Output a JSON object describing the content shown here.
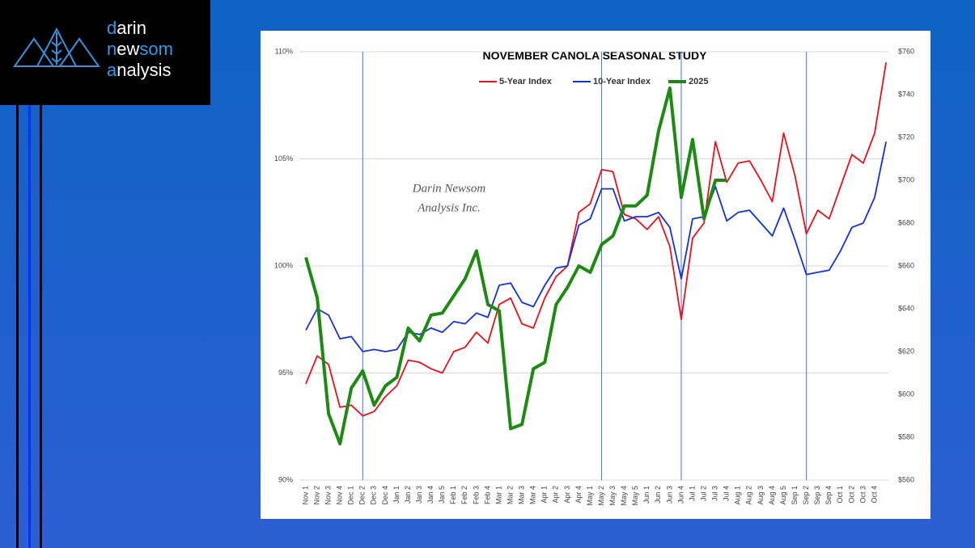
{
  "logo": {
    "lines": [
      [
        "d",
        "arin"
      ],
      [
        "n",
        "ew",
        "som"
      ],
      [
        "a",
        "nalysis"
      ]
    ]
  },
  "watermark": [
    "Darin Newsom",
    "Analysis Inc."
  ],
  "chart_data": {
    "type": "line",
    "title": "NOVEMBER CANOLA SEASONAL STUDY",
    "categories": [
      "Nov 1",
      "Nov 2",
      "Nov 3",
      "Nov 4",
      "Dec 1",
      "Dec 2",
      "Dec 3",
      "Dec 4",
      "Jan 1",
      "Jan 2",
      "Jan 3",
      "Jan 4",
      "Jan 5",
      "Feb 1",
      "Feb 2",
      "Feb 3",
      "Feb 4",
      "Mar 1",
      "Mar 2",
      "Mar 3",
      "Mar 4",
      "Apr 1",
      "Apr 2",
      "Apr 3",
      "Apr 4",
      "May 1",
      "May 2",
      "May 3",
      "May 4",
      "May 5",
      "Jun 1",
      "Jun 2",
      "Jun 3",
      "Jun 4",
      "Jul 1",
      "Jul 2",
      "Jul 3",
      "Jul 4",
      "Aug 1",
      "Aug 2",
      "Aug 3",
      "Aug 4",
      "Aug 5",
      "Sep 1",
      "Sep 2",
      "Sep 3",
      "Sep 4",
      "Oct 1",
      "Oct 2",
      "Oct 3",
      "Oct 4",
      null
    ],
    "series": [
      {
        "name": "5-Year Index",
        "color": "#e8101c",
        "values": [
          94.5,
          95.8,
          95.4,
          93.4,
          93.5,
          93.0,
          93.2,
          93.9,
          94.4,
          95.6,
          95.5,
          95.2,
          95.0,
          96.0,
          96.2,
          96.9,
          96.4,
          98.2,
          98.5,
          97.3,
          97.1,
          98.5,
          99.5,
          100.0,
          102.5,
          102.9,
          104.5,
          104.4,
          102.4,
          102.2,
          101.7,
          102.3,
          100.9,
          97.5,
          101.3,
          102.0,
          105.8,
          103.9,
          104.8,
          104.9,
          104.0,
          103.0,
          106.2,
          104.2,
          101.5,
          102.6,
          102.2,
          103.7,
          105.2,
          104.8,
          106.2,
          109.5
        ]
      },
      {
        "name": "10-Year Index",
        "color": "#1630d8",
        "values": [
          97.0,
          98.0,
          97.7,
          96.6,
          96.7,
          96.0,
          96.1,
          96.0,
          96.1,
          96.9,
          96.8,
          97.1,
          96.9,
          97.4,
          97.3,
          97.8,
          97.6,
          99.1,
          99.2,
          98.3,
          98.1,
          99.1,
          99.9,
          100.0,
          101.9,
          102.2,
          103.6,
          103.6,
          102.1,
          102.3,
          102.3,
          102.5,
          101.8,
          99.4,
          102.2,
          102.3,
          103.7,
          102.1,
          102.5,
          102.6,
          102.0,
          101.4,
          102.7,
          101.2,
          99.6,
          99.7,
          99.8,
          100.7,
          101.8,
          102.0,
          103.2,
          105.8
        ]
      },
      {
        "name": "2025",
        "color": "#1e8a14",
        "axis": "y2",
        "values": [
          664,
          645,
          591,
          577,
          603,
          611,
          595,
          604,
          608,
          631,
          625,
          637,
          638,
          646,
          654,
          667,
          642,
          639,
          584,
          586,
          612,
          615,
          642,
          650,
          660,
          657,
          670,
          674,
          688,
          688,
          693,
          723,
          743,
          692,
          719,
          682,
          700,
          700,
          null,
          null,
          null,
          null,
          null,
          null,
          null,
          null,
          null,
          null,
          null,
          null,
          null,
          null
        ]
      }
    ],
    "ylim": [
      90,
      110
    ],
    "yticks": [
      {
        "value": 90,
        "label": "90%"
      },
      {
        "value": 95,
        "label": "95%"
      },
      {
        "value": 100,
        "label": "100%"
      },
      {
        "value": 105,
        "label": "105%"
      },
      {
        "value": 110,
        "label": "110%"
      }
    ],
    "y2lim": [
      560,
      760
    ],
    "y2ticks": [
      {
        "value": 560,
        "label": "$560"
      },
      {
        "value": 580,
        "label": "$580"
      },
      {
        "value": 600,
        "label": "$600"
      },
      {
        "value": 620,
        "label": "$620"
      },
      {
        "value": 640,
        "label": "$640"
      },
      {
        "value": 660,
        "label": "$660"
      },
      {
        "value": 680,
        "label": "$680"
      },
      {
        "value": 700,
        "label": "$700"
      },
      {
        "value": 720,
        "label": "$720"
      },
      {
        "value": 740,
        "label": "$740"
      },
      {
        "value": 760,
        "label": "$760"
      }
    ],
    "grid": true,
    "vertical_lines": [
      "Dec 2",
      "May 2",
      "Jun 4",
      "Sep 2"
    ]
  }
}
